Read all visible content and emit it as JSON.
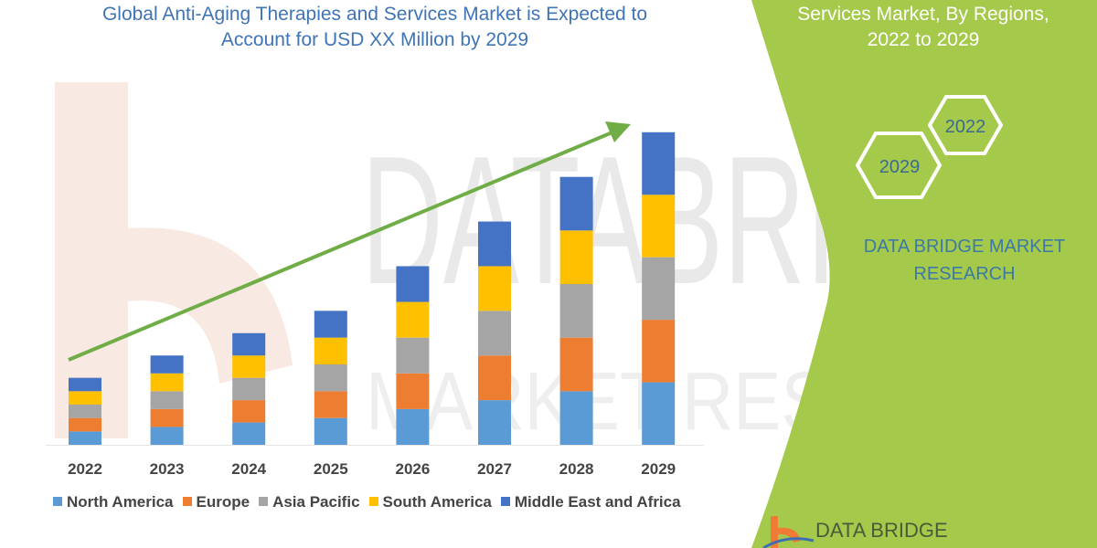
{
  "title_lines": [
    "Global Anti-Aging Therapies and Services Market is Expected to",
    "Account for USD XX Million by 2029"
  ],
  "side_panel": {
    "title_lines": [
      "Services Market, By Regions,",
      "2022 to 2029"
    ],
    "hex_labels": [
      "2022",
      "2029"
    ],
    "brand_lines": [
      "DATA BRIDGE MARKET",
      "RESEARCH"
    ],
    "logo_text": "DATA BRIDGE",
    "color": "#a5c94a"
  },
  "watermark": [
    "DATABRIDGE",
    "MARKET RESEARCH"
  ],
  "chart_data": {
    "type": "bar",
    "stacked": true,
    "title": "",
    "xlabel": "",
    "ylabel": "",
    "ylim": [
      0,
      72
    ],
    "grid": false,
    "legend_position": "bottom",
    "trend_arrow": true,
    "trend_arrow_color": "#70ad47",
    "categories": [
      "2022",
      "2023",
      "2024",
      "2025",
      "2026",
      "2027",
      "2028",
      "2029"
    ],
    "series": [
      {
        "name": "North America",
        "color": "#5b9bd5",
        "values": [
          3,
          4,
          5,
          6,
          8,
          10,
          12,
          14
        ]
      },
      {
        "name": "Europe",
        "color": "#ed7d31",
        "values": [
          3,
          4,
          5,
          6,
          8,
          10,
          12,
          14
        ]
      },
      {
        "name": "Asia Pacific",
        "color": "#a5a5a5",
        "values": [
          3,
          4,
          5,
          6,
          8,
          10,
          12,
          14
        ]
      },
      {
        "name": "South America",
        "color": "#ffc000",
        "values": [
          3,
          4,
          5,
          6,
          8,
          10,
          12,
          14
        ]
      },
      {
        "name": "Middle East and Africa",
        "color": "#4472c4",
        "values": [
          3,
          4,
          5,
          6,
          8,
          10,
          12,
          14
        ]
      }
    ]
  }
}
